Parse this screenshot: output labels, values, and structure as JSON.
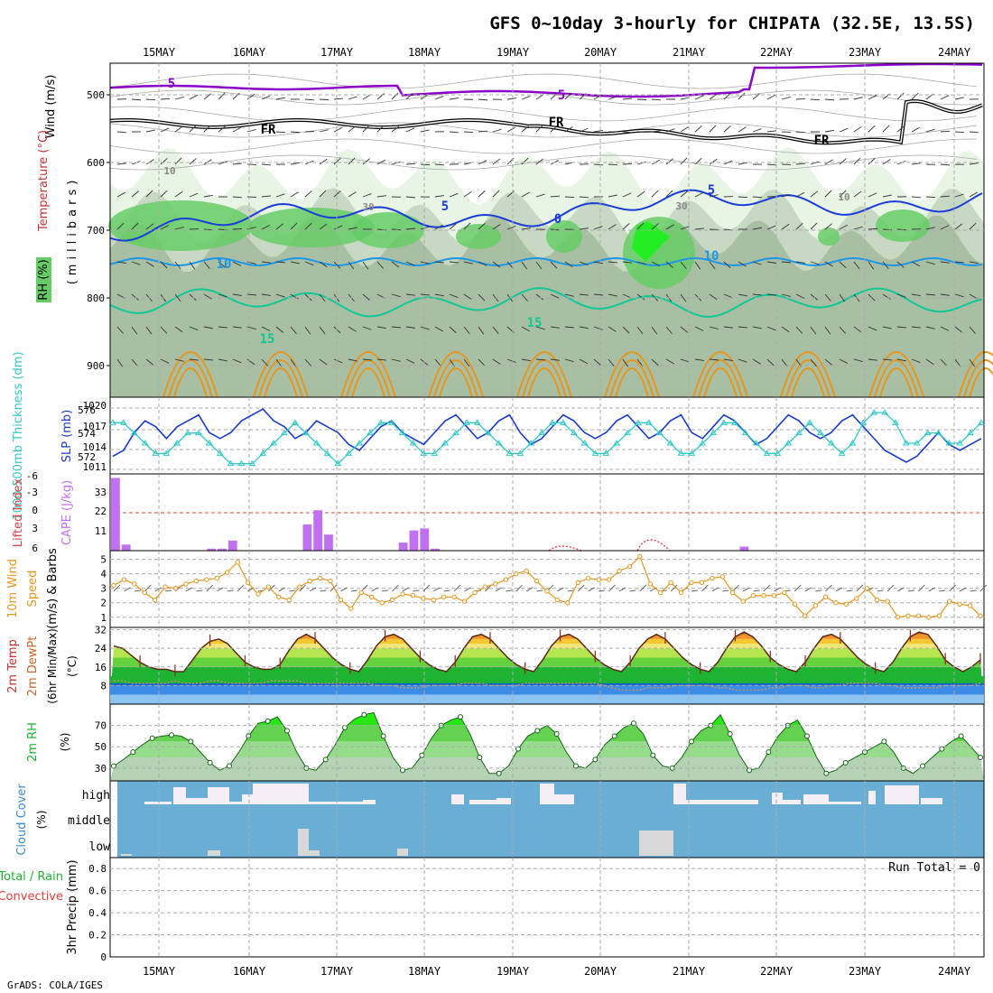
{
  "title": "GFS 0~10day 3-hourly for CHIPATA (32.5E, 13.5S)",
  "footer": "GrADS: COLA/IGES",
  "dates": [
    "15MAY",
    "16MAY",
    "17MAY",
    "18MAY",
    "19MAY",
    "20MAY",
    "21MAY",
    "22MAY",
    "23MAY",
    "24MAY"
  ],
  "colors": {
    "rh_fill_light": "#e8f4e4",
    "rh_fill_mid": "#c8d9c3",
    "rh_fill_dark": "#a9bfa4",
    "rh_fill_green": "#66cc66",
    "rh_fill_bright": "#22ee22",
    "temp_purple": "#8a00c8",
    "temp_blue": "#1a3cd8",
    "temp_lightblue": "#1e96e6",
    "temp_teal": "#10c896",
    "temp_orange": "#e6961e",
    "slp_line": "#1a3cc8",
    "thickness_line": "#32c8c8",
    "cape_bar": "#c070f0",
    "lifted_line": "#e04040",
    "wind_speed": "#e6961e",
    "temp_red": "#c83232",
    "cloud_blue": "#6aaed6",
    "cloud_white": "#f4eef6"
  },
  "panels": {
    "upper_air": {
      "ylabel_rh": "RH (%)",
      "ylabel_temp": "Temperature (°C)",
      "ylabel_wind": "Wind (m/s)",
      "ylabel_mb": "(millibars)",
      "yticks": [
        "500",
        "600",
        "700",
        "800",
        "900"
      ],
      "contour_labels": [
        "5",
        "5",
        "FR",
        "FR",
        "FR",
        "5",
        "5",
        "0",
        "10",
        "10",
        "15",
        "15",
        "10",
        "30",
        "30",
        "10"
      ]
    },
    "slp": {
      "ylabel_left": "1000-500mb Thickness (dm)",
      "ylabel_right": "SLP (mb)",
      "left_ticks": [
        "576",
        "574",
        "572"
      ],
      "right_ticks": [
        "1020",
        "1017",
        "1014",
        "1011"
      ]
    },
    "cape": {
      "ylabel_left": "Lifted Index",
      "ylabel_right": "CAPE (J/kg)",
      "left_ticks": [
        "-6",
        "-3",
        "0",
        "3",
        "6"
      ],
      "right_ticks": [
        "33",
        "22",
        "11"
      ]
    },
    "wind10m": {
      "ylabel": "10m Wind Speed (m/s) & Barbs",
      "ticks": [
        "5",
        "4",
        "3",
        "2",
        "1"
      ]
    },
    "temp2m": {
      "ylabel": "2m Temp 2m DewPt (6hr Min/Max) (°C)",
      "ticks": [
        "32",
        "24",
        "16",
        "8"
      ]
    },
    "rh2m": {
      "ylabel": "2m RH (%)",
      "ticks": [
        "70",
        "50",
        "30"
      ]
    },
    "cloud": {
      "ylabel": "Cloud Cover (%)",
      "levels": [
        "high",
        "middle",
        "low"
      ]
    },
    "precip": {
      "ylabel_a": "Total / Rain",
      "ylabel_b": "Convective",
      "ylabel_c": "3hr Precip (mm)",
      "ticks": [
        "0.8",
        "0.6",
        "0.4",
        "0.2",
        "0"
      ],
      "run_total": "Run Total = 0"
    }
  },
  "chart_data": [
    {
      "type": "line",
      "name_key": "slp",
      "x_unit": "3-hourly steps from 14MAY 12Z",
      "series": [
        {
          "values": [
            1012,
            1013,
            1016,
            1018,
            1017,
            1015,
            1017,
            1018,
            1019,
            1016,
            1015,
            1016,
            1018,
            1019,
            1020,
            1018,
            1017,
            1015,
            1016,
            1018,
            1017,
            1016,
            1014,
            1013,
            1015,
            1017,
            1018,
            1016,
            1015,
            1014,
            1016,
            1018,
            1019,
            1017,
            1015,
            1016,
            1018,
            1019,
            1016,
            1014,
            1015,
            1017,
            1019,
            1018,
            1016,
            1015,
            1016,
            1018,
            1019,
            1017,
            1015,
            1016,
            1018,
            1019,
            1016,
            1015,
            1017,
            1019,
            1018,
            1016,
            1014,
            1015,
            1017,
            1019,
            1018,
            1016,
            1015,
            1016,
            1018,
            1019,
            1017,
            1015,
            1013,
            1012,
            1011,
            1012,
            1014,
            1016,
            1014,
            1013,
            1014,
            1015
          ]
        }
      ]
    },
    {
      "type": "line",
      "name_key": "thickness",
      "series": [
        {
          "values": [
            575,
            575,
            574,
            573,
            572,
            572,
            573,
            574,
            574,
            573,
            572,
            571,
            571,
            571,
            572,
            573,
            574,
            575,
            574,
            573,
            572,
            571,
            572,
            573,
            574,
            575,
            575,
            574,
            573,
            572,
            572,
            573,
            574,
            575,
            575,
            574,
            573,
            572,
            572,
            573,
            574,
            575,
            575,
            574,
            573,
            572,
            572,
            573,
            574,
            575,
            575,
            574,
            573,
            572,
            572,
            573,
            574,
            575,
            575,
            574,
            573,
            572,
            572,
            573,
            574,
            575,
            574,
            573,
            572,
            573,
            575,
            576,
            576,
            575,
            573,
            573,
            574,
            574,
            573,
            573,
            574,
            575
          ]
        }
      ]
    },
    {
      "type": "bar",
      "name_key": "cape",
      "values": [
        36,
        3,
        0,
        0,
        0,
        0,
        0,
        0,
        0,
        1,
        1,
        5,
        0,
        0,
        0,
        0,
        0,
        0,
        13,
        20,
        8,
        0,
        0,
        0,
        0,
        0,
        0,
        4,
        10,
        11,
        1,
        0,
        0,
        0,
        0,
        0,
        0,
        0,
        0,
        0,
        0,
        0,
        0,
        0,
        0,
        0,
        0,
        0,
        0,
        0,
        0,
        0,
        0,
        0,
        0,
        0,
        0,
        0,
        0,
        2,
        0,
        0,
        0,
        0,
        0,
        0,
        0,
        0,
        0,
        0,
        0,
        0,
        0,
        0,
        0,
        0,
        0,
        0,
        0,
        0,
        0,
        0
      ]
    },
    {
      "type": "line",
      "name_key": "wind10m_speed",
      "series": [
        {
          "values": [
            3.2,
            3.6,
            3.3,
            2.7,
            2.2,
            3.1,
            3.0,
            3.3,
            3.5,
            3.6,
            3.7,
            4.1,
            4.8,
            3.4,
            2.6,
            3.1,
            2.4,
            2.2,
            3.1,
            3.5,
            3.7,
            3.5,
            2.2,
            1.6,
            2.7,
            2.4,
            2.0,
            2.2,
            2.6,
            2.5,
            2.3,
            2.2,
            2.4,
            2.4,
            2.1,
            2.7,
            3.1,
            3.3,
            3.6,
            4.0,
            4.2,
            3.5,
            2.8,
            2.2,
            2.0,
            3.4,
            3.7,
            3.6,
            3.6,
            4.2,
            4.5,
            5.2,
            3.3,
            2.7,
            3.4,
            2.7,
            3.4,
            3.4,
            3.7,
            3.8,
            2.7,
            2.1,
            2.5,
            2.5,
            2.5,
            2.7,
            1.9,
            1.1,
            1.8,
            2.4,
            2.0,
            1.9,
            2.3,
            3.0,
            2.2,
            2.1,
            1.0,
            1.1,
            1.1,
            1.0,
            1.1,
            2.1,
            1.9,
            1.8,
            1.1
          ]
        }
      ]
    },
    {
      "type": "area",
      "name_key": "temp2m",
      "series": [
        {
          "values": [
            25,
            24,
            21,
            18,
            16,
            15,
            15,
            14,
            14,
            19,
            24,
            27,
            28,
            26,
            22,
            18,
            16,
            15,
            15,
            17,
            23,
            28,
            30,
            28,
            24,
            20,
            17,
            15,
            14,
            19,
            25,
            29,
            30,
            28,
            24,
            20,
            17,
            15,
            14,
            18,
            24,
            29,
            30,
            28,
            24,
            20,
            17,
            15,
            14,
            19,
            25,
            29,
            30,
            28,
            24,
            20,
            17,
            15,
            14,
            18,
            24,
            28,
            30,
            28,
            24,
            20,
            17,
            15,
            14,
            18,
            24,
            29,
            31,
            29,
            25,
            20,
            17,
            15,
            14,
            18,
            24,
            29,
            30,
            28,
            24,
            20,
            17,
            15,
            14,
            18,
            24,
            29,
            31,
            30,
            25,
            19,
            16,
            14,
            16,
            19
          ]
        },
        {
          "values": [
            10,
            10,
            9,
            9,
            9,
            9,
            9,
            10,
            9,
            9,
            9,
            10,
            10,
            9,
            9,
            9,
            9,
            9,
            10,
            10,
            10,
            10,
            9,
            9,
            9,
            9,
            9,
            9,
            9,
            9,
            8,
            8,
            8,
            7,
            7,
            7,
            8,
            8,
            8,
            8,
            9,
            9,
            9,
            8,
            8,
            8,
            8,
            9,
            9,
            9,
            9,
            9,
            9,
            9,
            9,
            9,
            8,
            7,
            6,
            6,
            6,
            7,
            7,
            7,
            8,
            8,
            8,
            8,
            8,
            7,
            7,
            6,
            6,
            6,
            6,
            7,
            7,
            8,
            8,
            8,
            7,
            7,
            8,
            8,
            9,
            9,
            9,
            9,
            8,
            8,
            7,
            7,
            7,
            7,
            7,
            8,
            8,
            8,
            8,
            9
          ]
        }
      ]
    },
    {
      "type": "area",
      "name_key": "rh2m",
      "series": [
        {
          "values": [
            32,
            38,
            45,
            52,
            58,
            60,
            61,
            60,
            55,
            45,
            35,
            28,
            32,
            45,
            60,
            72,
            74,
            78,
            65,
            45,
            30,
            28,
            38,
            52,
            68,
            76,
            80,
            82,
            60,
            40,
            28,
            30,
            42,
            58,
            70,
            75,
            78,
            62,
            40,
            25,
            25,
            32,
            48,
            60,
            65,
            70,
            62,
            45,
            32,
            30,
            38,
            52,
            60,
            68,
            72,
            62,
            42,
            32,
            30,
            40,
            55,
            65,
            70,
            80,
            62,
            42,
            28,
            30,
            45,
            60,
            70,
            75,
            60,
            40,
            25,
            28,
            35,
            40,
            45,
            50,
            55,
            45,
            30,
            25,
            32,
            40,
            48,
            55,
            60,
            50,
            40
          ]
        }
      ]
    },
    {
      "type": "heatmap",
      "name_key": "cloud",
      "x": [
        "15MAY",
        "16MAY",
        "17MAY",
        "18MAY",
        "19MAY",
        "20MAY",
        "21MAY",
        "22MAY",
        "23MAY",
        "24MAY"
      ],
      "y": [
        "high",
        "middle",
        "low"
      ]
    },
    {
      "type": "bar",
      "name_key": "precip",
      "values": [],
      "ylim": [
        0,
        0.9
      ]
    }
  ]
}
